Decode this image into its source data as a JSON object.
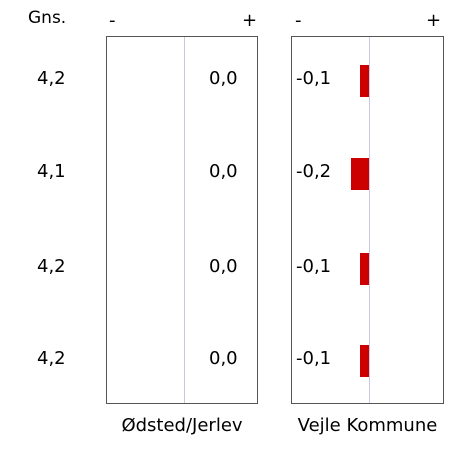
{
  "column_header": "Gns.",
  "sign_minus": "-",
  "sign_plus": "+",
  "averages": [
    "4,2",
    "4,1",
    "4,2",
    "4,2"
  ],
  "chart_data": [
    {
      "type": "bar",
      "orientation": "horizontal",
      "title": "Ødsted/Jerlev",
      "value_labels": [
        "0,0",
        "0,0",
        "0,0",
        "0,0"
      ],
      "values": [
        0.0,
        0.0,
        0.0,
        0.0
      ],
      "color": "#cc0000"
    },
    {
      "type": "bar",
      "orientation": "horizontal",
      "title": "Vejle Kommune",
      "value_labels": [
        "-0,1",
        "-0,2",
        "-0,1",
        "-0,1"
      ],
      "values": [
        -0.1,
        -0.2,
        -0.1,
        -0.1
      ],
      "color": "#cc0000"
    }
  ]
}
